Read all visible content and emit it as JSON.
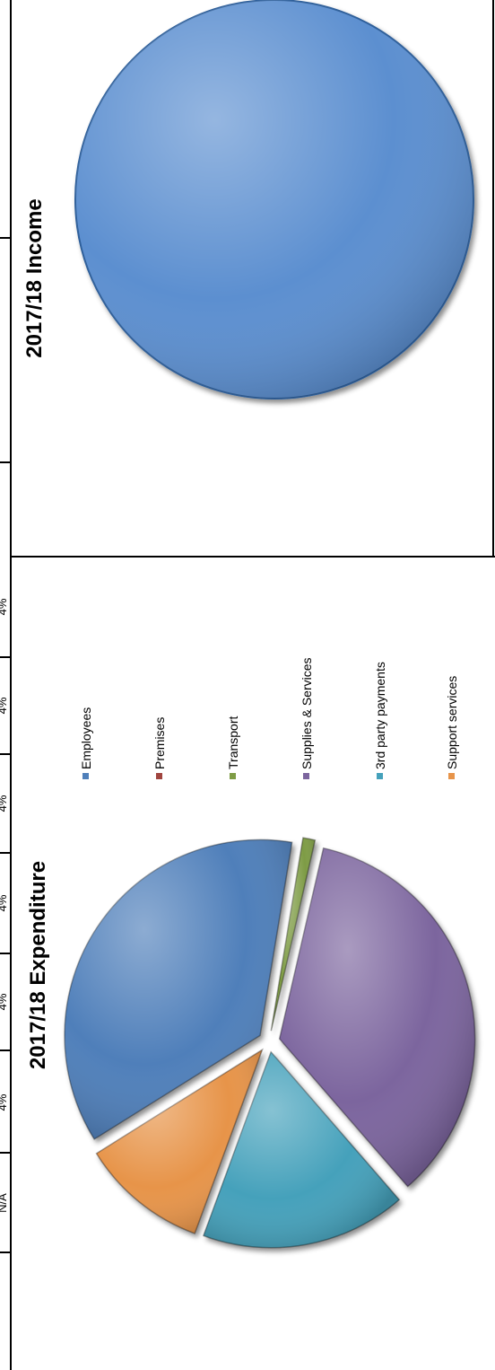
{
  "charts": {
    "income": {
      "title": "2017/18 Income"
    },
    "expenditure": {
      "title": "2017/18 Expenditure"
    }
  },
  "edge_fragments": [
    "N/A",
    "4%",
    "4%",
    "4%",
    "4%",
    "4%",
    "4%"
  ],
  "chart_data": [
    {
      "type": "pie",
      "title": "2017/18 Income",
      "categories": [
        ""
      ],
      "values": [
        100
      ],
      "colors": [
        "#5b8fd0"
      ],
      "legend": "none"
    },
    {
      "type": "pie",
      "title": "2017/18 Expenditure",
      "categories": [
        "Employees",
        "Premises",
        "Transport",
        "Supplies & Services",
        "3rd party payments",
        "Support services"
      ],
      "values": [
        36.5,
        0,
        1,
        35,
        17,
        10.5
      ],
      "colors": [
        "#4f7fba",
        "#a0453f",
        "#7e9c45",
        "#7c659e",
        "#45a1bb",
        "#e7944a"
      ],
      "legend": "right",
      "exploded": true
    }
  ]
}
